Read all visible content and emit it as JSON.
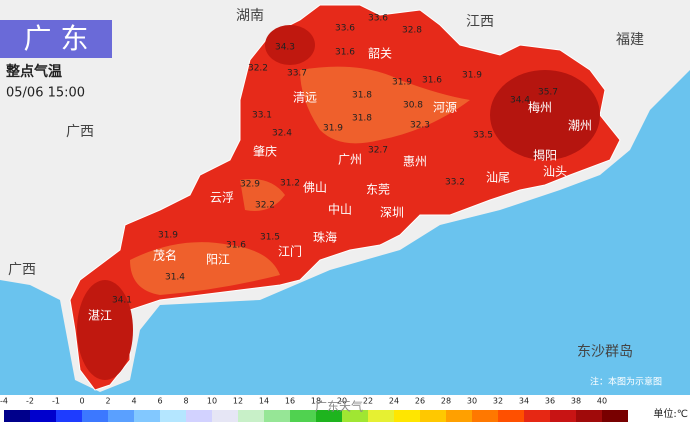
{
  "header": {
    "province": "广 东",
    "title": "整点气温",
    "time": "05/06 15:00"
  },
  "neighbors": [
    "湖南",
    "江西",
    "福建",
    "广西",
    "广西",
    "东沙群岛"
  ],
  "cities": [
    "韶关",
    "清远",
    "河源",
    "梅州",
    "潮州",
    "揭阳",
    "汕头",
    "肇庆",
    "广州",
    "惠州",
    "汕尾",
    "云浮",
    "佛山",
    "东莞",
    "深圳",
    "中山",
    "珠海",
    "江门",
    "阳江",
    "茂名",
    "湛江"
  ],
  "stations": [
    33.6,
    33.6,
    32.8,
    34.3,
    31.6,
    32.2,
    33.7,
    31.9,
    31.6,
    31.9,
    35.7,
    34.4,
    31.8,
    30.8,
    33.1,
    31.8,
    32.3,
    33.5,
    32.4,
    31.9,
    32.7,
    31.2,
    33.2,
    32.9,
    32.2,
    31.9,
    31.6,
    31.5,
    31.4,
    34.1
  ],
  "legend": {
    "ticks": [
      -4,
      -2,
      -1,
      0,
      2,
      4,
      6,
      8,
      10,
      12,
      14,
      16,
      18,
      20,
      22,
      24,
      26,
      28,
      30,
      32,
      34,
      36,
      38,
      40
    ],
    "colors": [
      "#00008b",
      "#0000cd",
      "#1e3cff",
      "#3c78ff",
      "#5aa0ff",
      "#82c8ff",
      "#b4e6ff",
      "#d2d2ff",
      "#e6e6f5",
      "#c8f0c8",
      "#96e696",
      "#50d250",
      "#1eb41e",
      "#a0e632",
      "#e6f032",
      "#ffe600",
      "#ffc800",
      "#ffa000",
      "#ff7800",
      "#ff5000",
      "#e62814",
      "#c81414",
      "#a00a0a",
      "#780000"
    ],
    "unit": "单位:℃"
  },
  "note": "注：本图为示意图",
  "watermark": "广东天气"
}
